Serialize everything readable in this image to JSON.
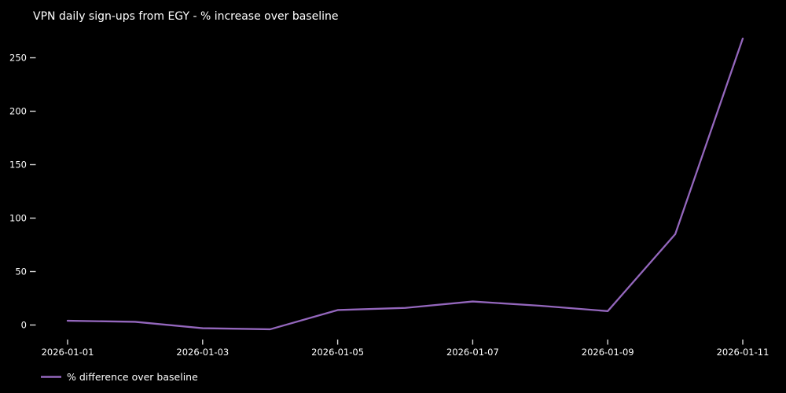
{
  "header": {
    "title": "VPN daily sign-ups from EGY - % increase over baseline"
  },
  "legend": {
    "label": "% difference over baseline",
    "position": "lower-left"
  },
  "colors": {
    "background": "#000000",
    "line": "#9467bd",
    "text": "#ffffff",
    "tick": "#d9d9d9"
  },
  "chart_data": {
    "type": "line",
    "title": "VPN daily sign-ups from EGY - % increase over baseline",
    "xlabel": "",
    "ylabel": "",
    "x": [
      "2026-01-01",
      "2026-01-02",
      "2026-01-03",
      "2026-01-04",
      "2026-01-05",
      "2026-01-06",
      "2026-01-07",
      "2026-01-08",
      "2026-01-09",
      "2026-01-10",
      "2026-01-11"
    ],
    "series": [
      {
        "name": "% difference over baseline",
        "values": [
          4,
          3,
          -3,
          -4,
          14,
          16,
          22,
          18,
          13,
          85,
          268
        ]
      }
    ],
    "yticks": [
      0,
      50,
      100,
      150,
      200,
      250
    ],
    "xticks": [
      "2026-01-01",
      "2026-01-03",
      "2026-01-05",
      "2026-01-07",
      "2026-01-09",
      "2026-01-11"
    ],
    "ylim": [
      -17,
      282
    ],
    "grid": false,
    "legend_position": "lower-left"
  }
}
